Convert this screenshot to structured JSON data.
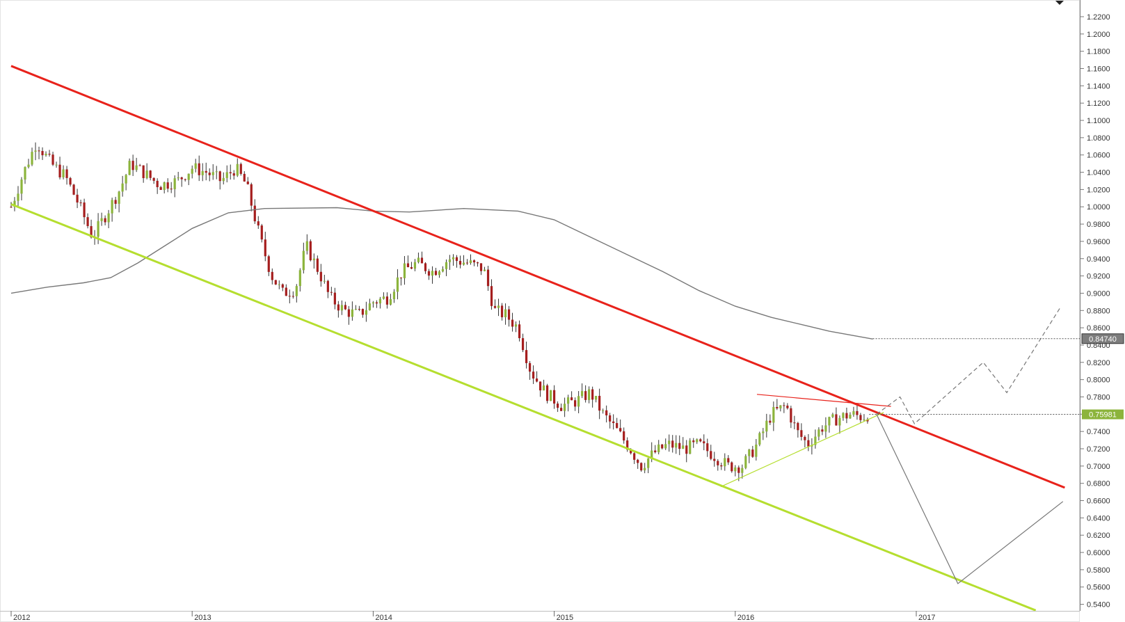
{
  "chart_data": {
    "type": "candlestick",
    "instrument": "",
    "x_axis": {
      "labels": [
        "2012",
        "2013",
        "2014",
        "2015",
        "2016",
        "2017"
      ],
      "start": 2012.0,
      "end": 2017.82
    },
    "y_axis": {
      "min": 0.53,
      "max": 1.23,
      "ticks": [
        "1.2200",
        "1.2000",
        "1.1800",
        "1.1600",
        "1.1400",
        "1.1200",
        "1.1000",
        "1.0800",
        "1.0600",
        "1.0400",
        "1.0200",
        "1.0000",
        "0.9800",
        "0.9600",
        "0.9400",
        "0.9200",
        "0.9000",
        "0.8800",
        "0.8600",
        "0.8400",
        "0.8200",
        "0.8000",
        "0.7800",
        "0.7600",
        "0.7400",
        "0.7200",
        "0.7000",
        "0.6800",
        "0.6600",
        "0.6400",
        "0.6200",
        "0.6000",
        "0.5800",
        "0.5600",
        "0.5400"
      ]
    },
    "price_labels": {
      "moving_average": {
        "text": "0.84740",
        "value": 0.8474
      },
      "last_price": {
        "text": "0.75981",
        "value": 0.75981
      }
    },
    "candle_anchors": [
      [
        2012.0,
        1.0
      ],
      [
        2012.07,
        1.04
      ],
      [
        2012.14,
        1.075
      ],
      [
        2012.22,
        1.05
      ],
      [
        2012.3,
        1.035
      ],
      [
        2012.38,
        1.0
      ],
      [
        2012.45,
        0.965
      ],
      [
        2012.52,
        0.99
      ],
      [
        2012.6,
        1.02
      ],
      [
        2012.66,
        1.05
      ],
      [
        2012.73,
        1.04
      ],
      [
        2012.82,
        1.025
      ],
      [
        2012.92,
        1.03
      ],
      [
        2013.0,
        1.045
      ],
      [
        2013.08,
        1.04
      ],
      [
        2013.16,
        1.03
      ],
      [
        2013.24,
        1.045
      ],
      [
        2013.3,
        1.025
      ],
      [
        2013.38,
        0.96
      ],
      [
        2013.44,
        0.92
      ],
      [
        2013.5,
        0.9
      ],
      [
        2013.57,
        0.905
      ],
      [
        2013.63,
        0.955
      ],
      [
        2013.7,
        0.925
      ],
      [
        2013.76,
        0.895
      ],
      [
        2013.84,
        0.88
      ],
      [
        2013.92,
        0.875
      ],
      [
        2014.0,
        0.89
      ],
      [
        2014.08,
        0.895
      ],
      [
        2014.16,
        0.925
      ],
      [
        2014.24,
        0.935
      ],
      [
        2014.33,
        0.925
      ],
      [
        2014.42,
        0.94
      ],
      [
        2014.52,
        0.935
      ],
      [
        2014.61,
        0.928
      ],
      [
        2014.67,
        0.88
      ],
      [
        2014.73,
        0.875
      ],
      [
        2014.8,
        0.86
      ],
      [
        2014.87,
        0.81
      ],
      [
        2014.95,
        0.785
      ],
      [
        2015.04,
        0.77
      ],
      [
        2015.12,
        0.775
      ],
      [
        2015.2,
        0.785
      ],
      [
        2015.27,
        0.76
      ],
      [
        2015.35,
        0.74
      ],
      [
        2015.42,
        0.72
      ],
      [
        2015.48,
        0.7
      ],
      [
        2015.55,
        0.715
      ],
      [
        2015.63,
        0.725
      ],
      [
        2015.72,
        0.72
      ],
      [
        2015.8,
        0.725
      ],
      [
        2015.96,
        0.7
      ],
      [
        2016.04,
        0.7
      ],
      [
        2016.12,
        0.725
      ],
      [
        2016.2,
        0.76
      ],
      [
        2016.28,
        0.77
      ],
      [
        2016.34,
        0.74
      ],
      [
        2016.4,
        0.725
      ],
      [
        2016.48,
        0.745
      ],
      [
        2016.56,
        0.755
      ],
      [
        2016.64,
        0.76
      ],
      [
        2016.7,
        0.757
      ],
      [
        2016.74,
        0.76
      ]
    ],
    "series": [
      {
        "kind": "candles",
        "color_up": "#8cb43c",
        "color_down": "#a51e1e"
      },
      {
        "kind": "moving_average",
        "color": "#777777",
        "points": [
          [
            2012.0,
            0.9
          ],
          [
            2012.2,
            0.907
          ],
          [
            2012.4,
            0.912
          ],
          [
            2012.55,
            0.918
          ],
          [
            2012.7,
            0.935
          ],
          [
            2012.85,
            0.955
          ],
          [
            2013.0,
            0.975
          ],
          [
            2013.2,
            0.993
          ],
          [
            2013.4,
            0.998
          ],
          [
            2013.8,
            0.999
          ],
          [
            2014.0,
            0.995
          ],
          [
            2014.2,
            0.994
          ],
          [
            2014.5,
            0.998
          ],
          [
            2014.8,
            0.995
          ],
          [
            2015.0,
            0.985
          ],
          [
            2015.2,
            0.965
          ],
          [
            2015.4,
            0.945
          ],
          [
            2015.6,
            0.925
          ],
          [
            2015.8,
            0.903
          ],
          [
            2016.0,
            0.885
          ],
          [
            2016.2,
            0.872
          ],
          [
            2016.4,
            0.862
          ],
          [
            2016.52,
            0.856
          ],
          [
            2016.76,
            0.847
          ]
        ]
      },
      {
        "kind": "trendline",
        "role": "channel-top",
        "color": "#e8221b",
        "points": [
          [
            2012.0,
            1.163
          ],
          [
            2017.82,
            0.675
          ]
        ]
      },
      {
        "kind": "trendline",
        "role": "channel-bottom",
        "color": "#b5de2f",
        "points": [
          [
            2012.0,
            1.003
          ],
          [
            2017.66,
            0.533
          ]
        ]
      },
      {
        "kind": "trendline",
        "role": "support",
        "color": "#b5de2f",
        "points": [
          [
            2015.92,
            0.676
          ],
          [
            2016.82,
            0.762
          ]
        ]
      },
      {
        "kind": "trendline",
        "role": "resistance",
        "color": "#e8221b",
        "points": [
          [
            2016.12,
            0.783
          ],
          [
            2016.86,
            0.769
          ]
        ]
      },
      {
        "kind": "projection",
        "style": "dashed",
        "color": "#777777",
        "points": [
          [
            2016.78,
            0.76
          ],
          [
            2016.91,
            0.78
          ],
          [
            2016.99,
            0.749
          ],
          [
            2017.37,
            0.82
          ],
          [
            2017.5,
            0.785
          ],
          [
            2017.8,
            0.885
          ]
        ]
      },
      {
        "kind": "projection",
        "style": "solid",
        "color": "#777777",
        "points": [
          [
            2016.78,
            0.76
          ],
          [
            2017.23,
            0.564
          ],
          [
            2017.81,
            0.659
          ]
        ]
      }
    ],
    "grid": false
  }
}
